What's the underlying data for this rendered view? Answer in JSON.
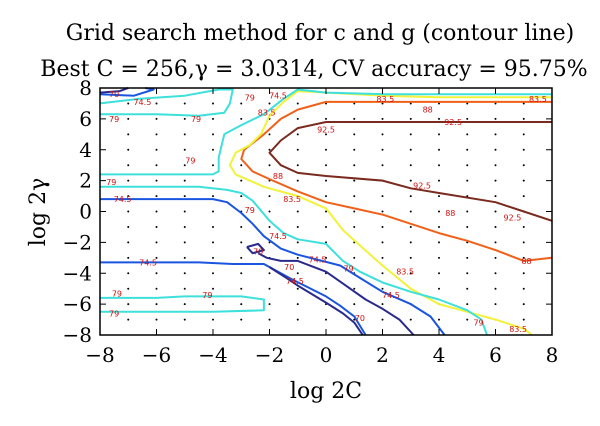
{
  "chart_data": {
    "type": "contour",
    "title": "Grid search method for c and g (contour line)",
    "subtitle": "Best C = 256,γ = 3.0314, CV accuracy = 95.75%",
    "xlabel": "log 2C",
    "ylabel": "log 2γ",
    "xlim": [
      -8,
      8
    ],
    "ylim": [
      -8,
      8
    ],
    "xticks": [
      -8,
      -6,
      -4,
      -2,
      0,
      2,
      4,
      6,
      8
    ],
    "yticks": [
      -8,
      -6,
      -4,
      -2,
      0,
      2,
      4,
      6,
      8
    ],
    "grid_dots_step": 1,
    "levels": [
      {
        "value": 70,
        "label": "70",
        "color": "#2a2a8c"
      },
      {
        "value": 74.5,
        "label": "74.5",
        "color": "#1a55e0"
      },
      {
        "value": 79,
        "label": "79",
        "color": "#3ee0dc"
      },
      {
        "value": 83.5,
        "label": "83.5",
        "color": "#f2f23a"
      },
      {
        "value": 88,
        "label": "88",
        "color": "#f06018"
      },
      {
        "value": 92.5,
        "label": "92.5",
        "color": "#7a2a1e"
      }
    ],
    "contours": [
      {
        "level": 92.5,
        "points": [
          [
            8,
            5.8
          ],
          [
            6,
            5.8
          ],
          [
            4,
            5.8
          ],
          [
            2,
            5.8
          ],
          [
            0,
            5.8
          ],
          [
            -1,
            5.4
          ],
          [
            -1.6,
            4.6
          ],
          [
            -2,
            3.8
          ],
          [
            -1.6,
            3.0
          ],
          [
            -1,
            2.5
          ],
          [
            0,
            2.3
          ],
          [
            2,
            2.0
          ],
          [
            3,
            1.5
          ],
          [
            4,
            1.2
          ],
          [
            6,
            0.6
          ],
          [
            7,
            0.0
          ],
          [
            8,
            -0.6
          ]
        ]
      },
      {
        "level": 88,
        "points": [
          [
            8,
            7.1
          ],
          [
            6,
            7.1
          ],
          [
            4,
            7.1
          ],
          [
            2,
            7.1
          ],
          [
            0,
            7.1
          ],
          [
            -1,
            6.6
          ],
          [
            -1.6,
            6.0
          ],
          [
            -2.2,
            5.0
          ],
          [
            -2.9,
            4.0
          ],
          [
            -3,
            3.4
          ],
          [
            -2.6,
            2.6
          ],
          [
            -2,
            2.1
          ],
          [
            -1,
            1.3
          ],
          [
            0,
            0.6
          ],
          [
            1,
            0.2
          ],
          [
            2,
            -0.2
          ],
          [
            3,
            -0.8
          ],
          [
            4,
            -1.4
          ],
          [
            5,
            -1.9
          ],
          [
            6,
            -2.5
          ],
          [
            7,
            -3.2
          ],
          [
            8,
            -3.0
          ]
        ]
      },
      {
        "level": 83.5,
        "points": [
          [
            8,
            7.4
          ],
          [
            6,
            7.4
          ],
          [
            4,
            7.4
          ],
          [
            2,
            7.5
          ],
          [
            0,
            7.7
          ],
          [
            -1,
            7.8
          ],
          [
            -1.5,
            7.1
          ],
          [
            -2,
            6.2
          ],
          [
            -2.3,
            5.0
          ],
          [
            -2.7,
            4.3
          ],
          [
            -3.2,
            3.8
          ],
          [
            -3.4,
            3.0
          ],
          [
            -3.2,
            2.4
          ],
          [
            -2.2,
            1.6
          ],
          [
            -1,
            1.0
          ],
          [
            -0.5,
            0.6
          ],
          [
            0,
            0.2
          ],
          [
            0.6,
            -1.2
          ],
          [
            1.2,
            -2.2
          ],
          [
            2,
            -3.5
          ],
          [
            3,
            -5.0
          ],
          [
            4,
            -6.0
          ],
          [
            5,
            -6.5
          ],
          [
            6,
            -7.0
          ],
          [
            7,
            -7.6
          ],
          [
            7.3,
            -8
          ]
        ]
      },
      {
        "level": 79,
        "points": [
          [
            8,
            7.6
          ],
          [
            6,
            7.6
          ],
          [
            4,
            7.6
          ],
          [
            2,
            7.6
          ],
          [
            0,
            7.7
          ],
          [
            -1,
            7.9
          ],
          [
            -1.5,
            7.3
          ],
          [
            -2.2,
            6.3
          ],
          [
            -3,
            5.6
          ],
          [
            -3.6,
            5.0
          ],
          [
            -3.8,
            3.5
          ],
          [
            -3.8,
            2.6
          ],
          [
            -4,
            2.4
          ],
          [
            -6,
            2.4
          ],
          [
            -8,
            2.4
          ]
        ]
      },
      {
        "level": 79,
        "points": [
          [
            -8,
            1.6
          ],
          [
            -6,
            1.6
          ],
          [
            -4.5,
            1.6
          ],
          [
            -3.5,
            1.4
          ],
          [
            -3,
            1.2
          ],
          [
            -2.6,
            0.7
          ],
          [
            -2.0,
            -0.6
          ],
          [
            -1.5,
            -1.4
          ],
          [
            -1,
            -1.8
          ],
          [
            0,
            -2.1
          ],
          [
            0.6,
            -3.2
          ],
          [
            1.2,
            -3.9
          ],
          [
            2,
            -4.6
          ],
          [
            3,
            -5.2
          ],
          [
            4,
            -5.7
          ],
          [
            5,
            -6.4
          ],
          [
            5.5,
            -7.0
          ],
          [
            5.7,
            -8
          ]
        ]
      },
      {
        "level": 79,
        "points": [
          [
            -8,
            6.3
          ],
          [
            -6,
            6.3
          ],
          [
            -4.5,
            6.2
          ],
          [
            -3.6,
            6.4
          ],
          [
            -3.4,
            7.0
          ],
          [
            -3.3,
            7.9
          ],
          [
            -3.8,
            7.9
          ],
          [
            -5,
            7.5
          ],
          [
            -6.6,
            7.3
          ],
          [
            -8,
            7.0
          ]
        ]
      },
      {
        "level": 79,
        "points": [
          [
            -8,
            -5.6
          ],
          [
            -6,
            -5.6
          ],
          [
            -5,
            -5.5
          ],
          [
            -3,
            -5.5
          ],
          [
            -2.2,
            -5.7
          ],
          [
            -2.2,
            -6.4
          ],
          [
            -4,
            -6.5
          ],
          [
            -6,
            -6.5
          ],
          [
            -8,
            -6.5
          ]
        ]
      },
      {
        "level": 74.5,
        "points": [
          [
            -8,
            7.6
          ],
          [
            -6.8,
            7.5
          ],
          [
            -6.1,
            7.9
          ],
          [
            -6.4,
            8
          ]
        ]
      },
      {
        "level": 74.5,
        "points": [
          [
            -8,
            0.8
          ],
          [
            -6,
            0.8
          ],
          [
            -4,
            0.8
          ],
          [
            -3.5,
            0.6
          ],
          [
            -3,
            -0.1
          ],
          [
            -2.6,
            -0.8
          ],
          [
            -2.2,
            -1.6
          ],
          [
            -1.6,
            -2.4
          ],
          [
            -1,
            -2.8
          ],
          [
            0.5,
            -3.5
          ],
          [
            1.2,
            -4.3
          ],
          [
            2,
            -5.2
          ],
          [
            3,
            -6.0
          ],
          [
            3.7,
            -6.8
          ],
          [
            4.2,
            -8
          ]
        ]
      },
      {
        "level": 74.5,
        "points": [
          [
            -8,
            -3.3
          ],
          [
            -6,
            -3.3
          ],
          [
            -4.5,
            -3.3
          ],
          [
            -3.3,
            -3.4
          ],
          [
            -2.2,
            -3.4
          ],
          [
            -1.7,
            -3.9
          ],
          [
            -1.2,
            -4.4
          ],
          [
            0,
            -5.5
          ],
          [
            0.5,
            -6.1
          ],
          [
            1.0,
            -6.8
          ],
          [
            1.4,
            -8
          ]
        ]
      },
      {
        "level": 70,
        "points": [
          [
            -8,
            7.7
          ],
          [
            -7.3,
            7.8
          ],
          [
            -7,
            8
          ]
        ]
      },
      {
        "level": 70,
        "points": [
          [
            -2.4,
            -2.7
          ],
          [
            -2.1,
            -3.0
          ],
          [
            -1.6,
            -3.2
          ],
          [
            -1.0,
            -3.2
          ],
          [
            0,
            -3.9
          ],
          [
            0.7,
            -4.8
          ],
          [
            1.4,
            -5.7
          ],
          [
            2,
            -6.3
          ],
          [
            2.6,
            -7.0
          ],
          [
            3.1,
            -8
          ]
        ]
      },
      {
        "level": 70,
        "points": [
          [
            -2.0,
            -3.6
          ],
          [
            -1.4,
            -4.3
          ],
          [
            -1,
            -4.8
          ],
          [
            0,
            -5.9
          ],
          [
            0.6,
            -6.6
          ],
          [
            1,
            -7.2
          ],
          [
            1.3,
            -8
          ]
        ]
      },
      {
        "level": 70,
        "points": [
          [
            -2.8,
            -2.3
          ],
          [
            -2.4,
            -2.1
          ],
          [
            -2.2,
            -2.5
          ],
          [
            -2.6,
            -2.7
          ],
          [
            -2.8,
            -2.3
          ]
        ]
      }
    ],
    "annotations": [
      {
        "text": "70",
        "x": -7.5,
        "y": 7.6
      },
      {
        "text": "74.5",
        "x": -6.5,
        "y": 7.1
      },
      {
        "text": "79",
        "x": -7.5,
        "y": 6.0
      },
      {
        "text": "79",
        "x": -4.6,
        "y": 6.0
      },
      {
        "text": "79",
        "x": -2.7,
        "y": 7.4
      },
      {
        "text": "74.5",
        "x": -1.7,
        "y": 7.5
      },
      {
        "text": "83.5",
        "x": -2.1,
        "y": 6.4
      },
      {
        "text": "83.5",
        "x": 2.1,
        "y": 7.3
      },
      {
        "text": "83.5",
        "x": 7.5,
        "y": 7.3
      },
      {
        "text": "88",
        "x": 3.6,
        "y": 6.6
      },
      {
        "text": "92.5",
        "x": 0.0,
        "y": 5.3
      },
      {
        "text": "92.5",
        "x": 4.5,
        "y": 5.8
      },
      {
        "text": "79",
        "x": -4.8,
        "y": 3.3
      },
      {
        "text": "79",
        "x": -7.6,
        "y": 1.9
      },
      {
        "text": "88",
        "x": -1.7,
        "y": 2.3
      },
      {
        "text": "92.5",
        "x": 3.4,
        "y": 1.7
      },
      {
        "text": "83.5",
        "x": -1.2,
        "y": 0.8
      },
      {
        "text": "88",
        "x": 4.4,
        "y": -0.1
      },
      {
        "text": "92.5",
        "x": 6.6,
        "y": -0.4
      },
      {
        "text": "74.5",
        "x": -7.2,
        "y": 0.8
      },
      {
        "text": "79",
        "x": -2.7,
        "y": 0.1
      },
      {
        "text": "74.5",
        "x": -1.7,
        "y": -1.6
      },
      {
        "text": "88",
        "x": 7.1,
        "y": -3.2
      },
      {
        "text": "74.5",
        "x": -6.3,
        "y": -3.3
      },
      {
        "text": "79",
        "x": 0.8,
        "y": -3.7
      },
      {
        "text": "83.5",
        "x": 2.8,
        "y": -3.9
      },
      {
        "text": "70",
        "x": -1.3,
        "y": -3.6
      },
      {
        "text": "74.5",
        "x": -1.1,
        "y": -4.5
      },
      {
        "text": "79",
        "x": -7.4,
        "y": -5.3
      },
      {
        "text": "79",
        "x": -4.2,
        "y": -5.4
      },
      {
        "text": "79",
        "x": -7.5,
        "y": -6.6
      },
      {
        "text": "74.5",
        "x": 2.3,
        "y": -5.4
      },
      {
        "text": "70",
        "x": 1.2,
        "y": -6.9
      },
      {
        "text": "79",
        "x": 5.4,
        "y": -7.2
      },
      {
        "text": "83.5",
        "x": 6.8,
        "y": -7.6
      },
      {
        "text": "74.5",
        "x": -0.3,
        "y": -3.1
      },
      {
        "text": "70",
        "x": -2.4,
        "y": -2.6
      }
    ]
  }
}
